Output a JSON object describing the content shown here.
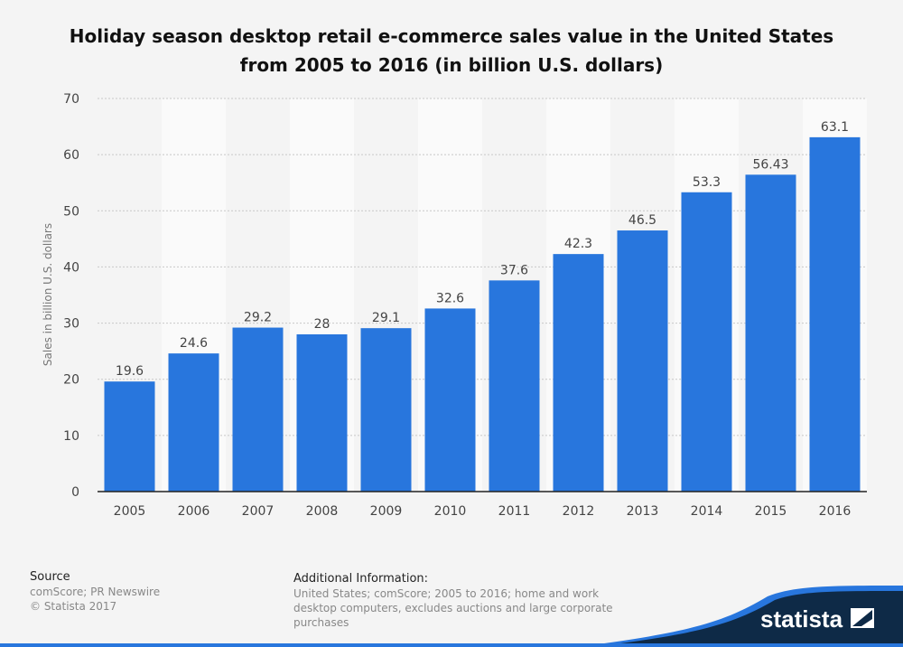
{
  "title": "Holiday season desktop retail e-commerce sales value in the United States from 2005 to 2016 (in billion U.S. dollars)",
  "colors": {
    "bar": "#2876dd",
    "background": "#f4f4f4",
    "band": "#fafafa",
    "logo_bg": "#0e2a47"
  },
  "chart_data": {
    "type": "bar",
    "categories": [
      "2005",
      "2006",
      "2007",
      "2008",
      "2009",
      "2010",
      "2011",
      "2012",
      "2013",
      "2014",
      "2015",
      "2016"
    ],
    "values": [
      19.6,
      24.6,
      29.2,
      28,
      29.1,
      32.6,
      37.6,
      42.3,
      46.5,
      53.3,
      56.43,
      63.1
    ],
    "data_labels": [
      "19.6",
      "24.6",
      "29.2",
      "28",
      "29.1",
      "32.6",
      "37.6",
      "42.3",
      "46.5",
      "53.3",
      "56.43",
      "63.1"
    ],
    "ylabel": "Sales in billion U.S. dollars",
    "ylim": [
      0,
      70
    ],
    "yticks": [
      0,
      10,
      20,
      30,
      40,
      50,
      60,
      70
    ],
    "grid": true,
    "legend": "none"
  },
  "footer": {
    "source_label": "Source",
    "source_text": "comScore; PR Newswire",
    "copyright": "© Statista 2017",
    "additional_label": "Additional Information:",
    "additional_text": "United States; comScore; 2005 to 2016; home and work desktop computers, excludes auctions and large corporate purchases",
    "logo": "statista"
  }
}
